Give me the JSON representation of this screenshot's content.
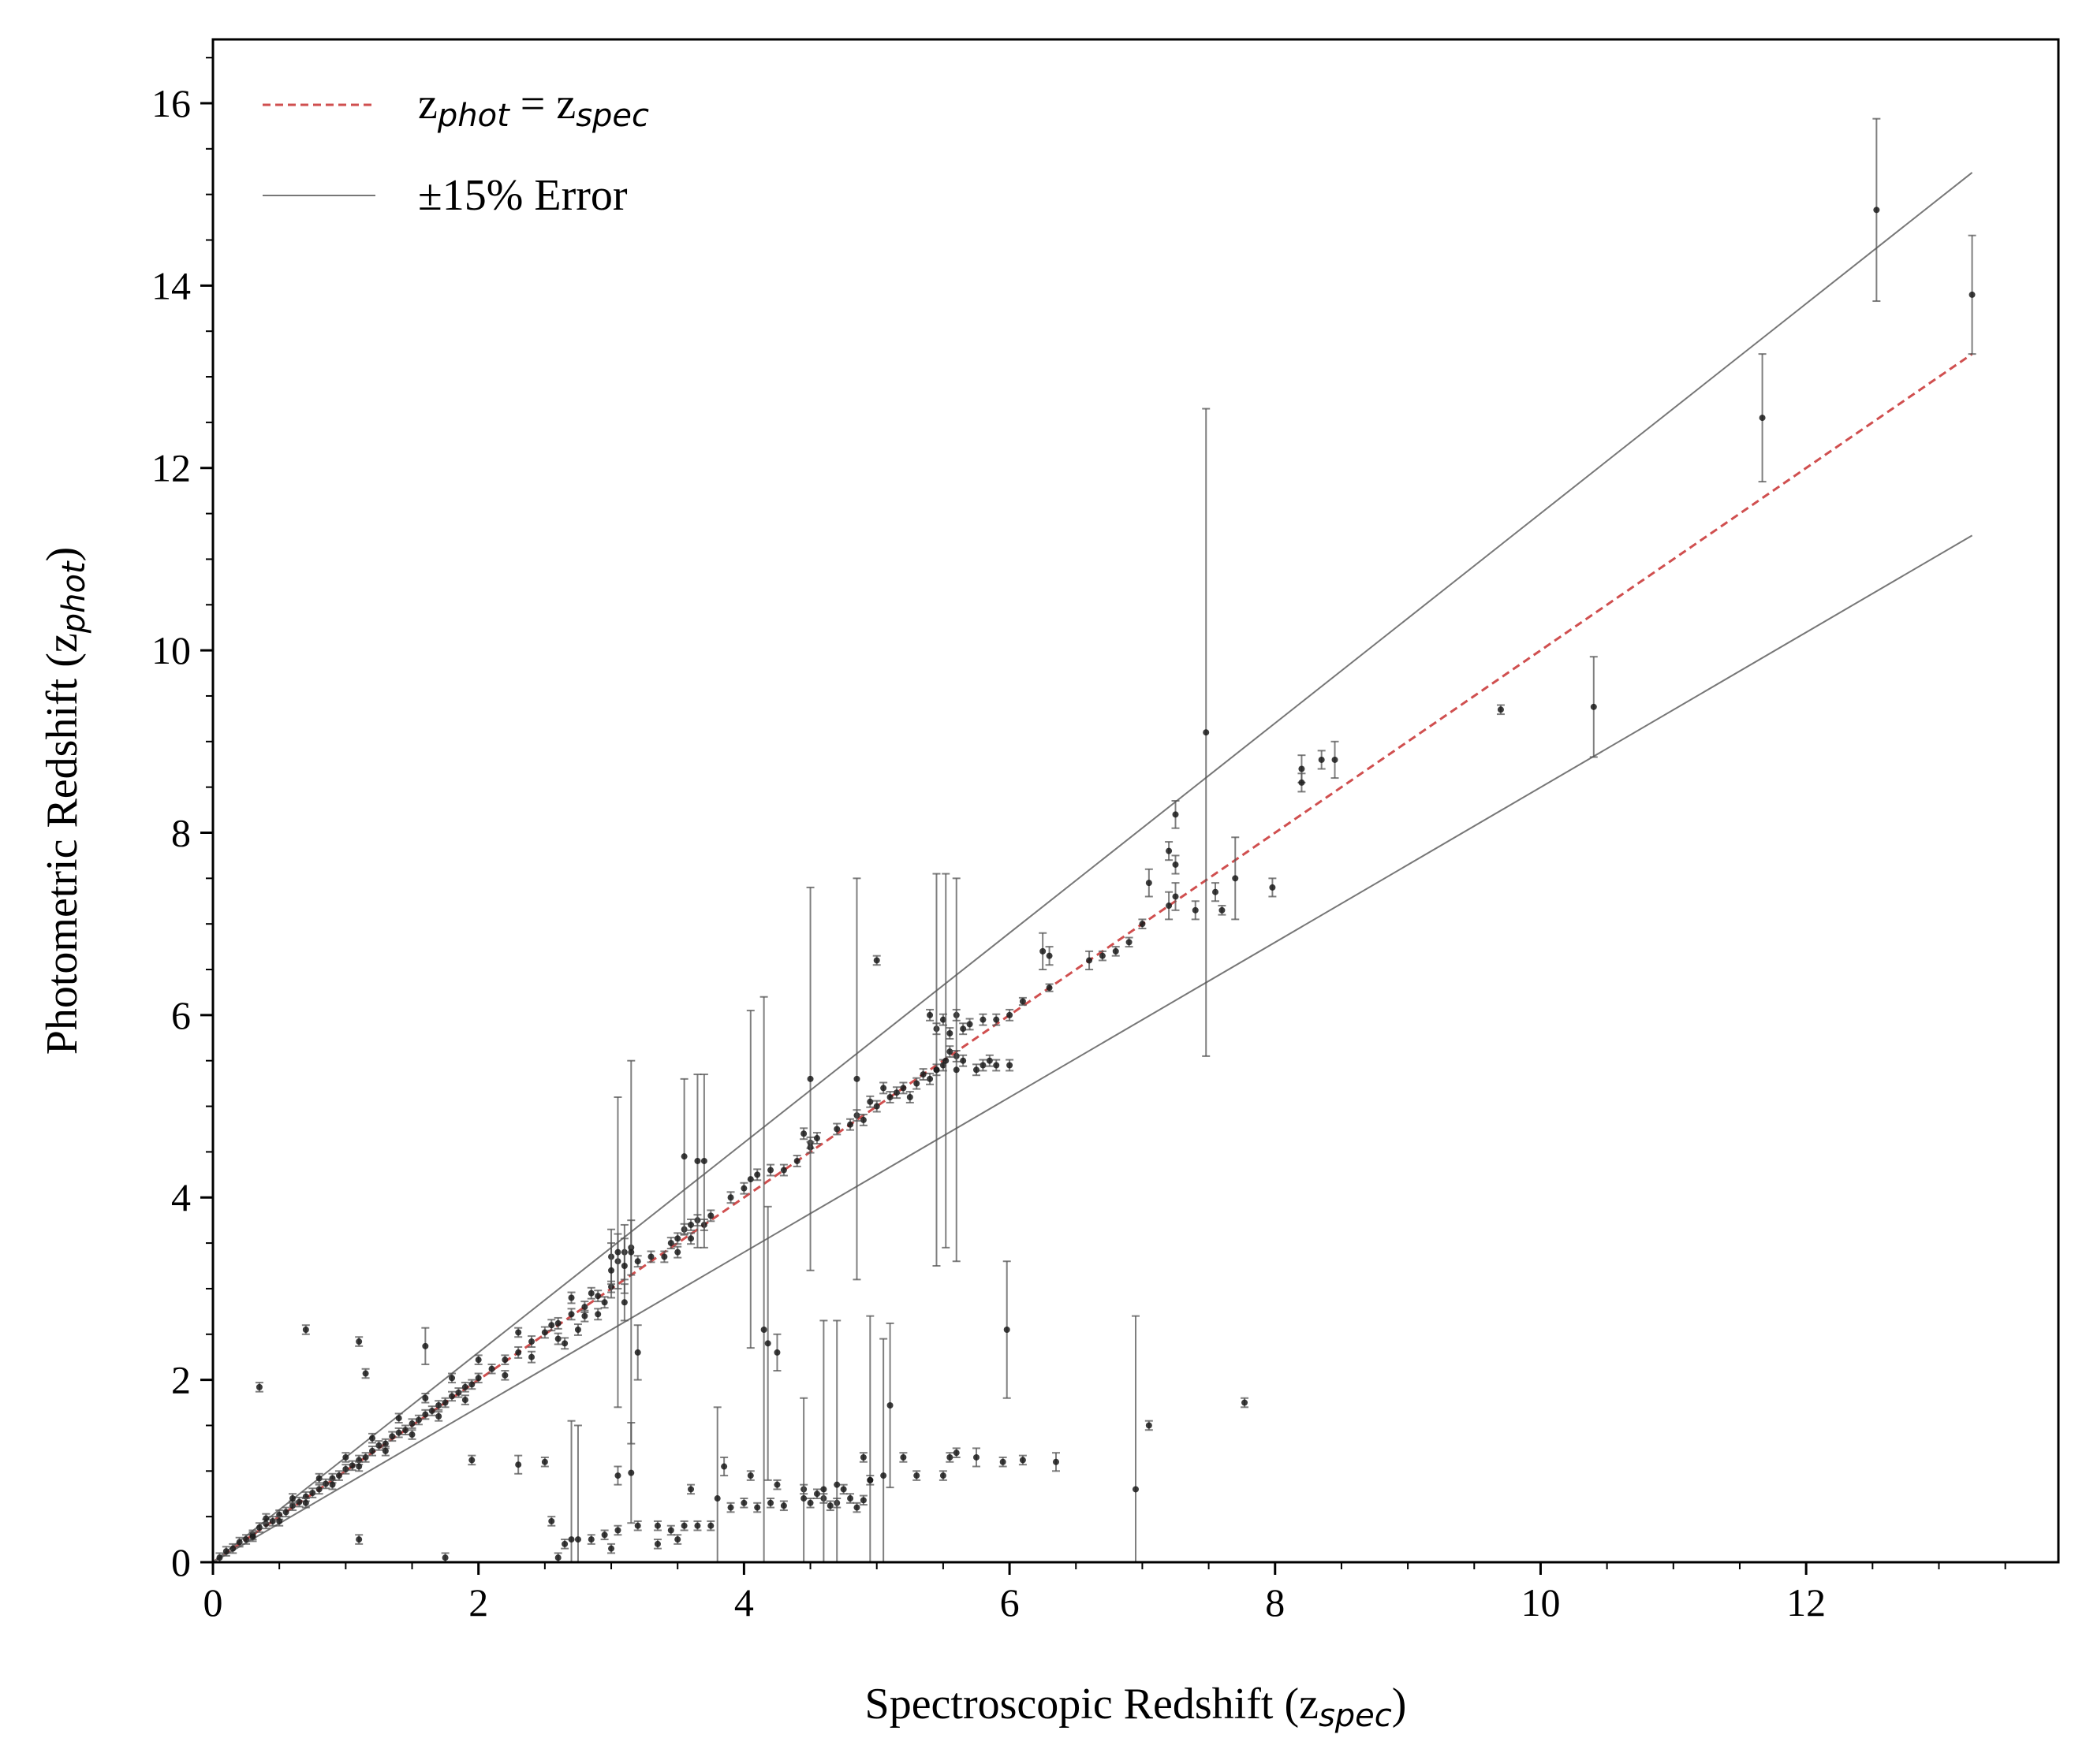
{
  "chart_data": {
    "type": "scatter",
    "xlabel": "Spectroscopic Redshift (z",
    "xlabel_sub": "spec",
    "xlabel_close": ")",
    "ylabel": "Photometric Redshift (z",
    "ylabel_sub": "phot",
    "ylabel_close": ")",
    "xlim": [
      0,
      13.9
    ],
    "ylim": [
      0,
      16.7
    ],
    "xticks": [
      0,
      2,
      4,
      6,
      8,
      10,
      12
    ],
    "yticks": [
      0,
      2,
      4,
      6,
      8,
      10,
      12,
      14,
      16
    ],
    "legend_position": "top-left",
    "legend": {
      "identity_main": "z",
      "identity_sub1": "phot",
      "identity_eq": " = z",
      "identity_sub2": "spec",
      "error_label": "±15% Error"
    },
    "colors": {
      "identity": "#d04f4f",
      "error_lines": "#777777",
      "points": "#1a1a1a",
      "errorbars": "#555555"
    },
    "lines": [
      {
        "name": "z_phot = z_spec",
        "style": "dashed",
        "x": [
          0,
          13.25
        ],
        "y": [
          0,
          13.25
        ]
      },
      {
        "name": "+15%",
        "style": "solid",
        "x": [
          0,
          13.25
        ],
        "y": [
          0,
          15.24
        ]
      },
      {
        "name": "-15%",
        "style": "solid",
        "x": [
          0,
          13.25
        ],
        "y": [
          0,
          11.26
        ]
      }
    ],
    "points": [
      [
        0.05,
        0.05,
        0.05
      ],
      [
        0.1,
        0.12,
        0.05
      ],
      [
        0.15,
        0.15,
        0.05
      ],
      [
        0.2,
        0.22,
        0.05
      ],
      [
        0.25,
        0.25,
        0.05
      ],
      [
        0.3,
        0.3,
        0.05
      ],
      [
        0.35,
        0.38,
        0.05
      ],
      [
        0.4,
        0.42,
        0.05
      ],
      [
        0.45,
        0.45,
        0.05
      ],
      [
        0.5,
        0.52,
        0.05
      ],
      [
        0.55,
        0.55,
        0.05
      ],
      [
        0.6,
        0.62,
        0.05
      ],
      [
        0.65,
        0.66,
        0.05
      ],
      [
        0.7,
        0.72,
        0.05
      ],
      [
        0.75,
        0.76,
        0.05
      ],
      [
        0.8,
        0.8,
        0.05
      ],
      [
        0.85,
        0.86,
        0.05
      ],
      [
        0.9,
        0.92,
        0.05
      ],
      [
        0.95,
        0.95,
        0.05
      ],
      [
        1.0,
        1.02,
        0.05
      ],
      [
        1.05,
        1.06,
        0.05
      ],
      [
        1.1,
        1.12,
        0.05
      ],
      [
        1.15,
        1.15,
        0.05
      ],
      [
        1.2,
        1.22,
        0.05
      ],
      [
        1.25,
        1.28,
        0.05
      ],
      [
        1.3,
        1.3,
        0.05
      ],
      [
        1.35,
        1.38,
        0.05
      ],
      [
        1.4,
        1.42,
        0.05
      ],
      [
        1.45,
        1.45,
        0.05
      ],
      [
        1.5,
        1.52,
        0.05
      ],
      [
        1.55,
        1.56,
        0.05
      ],
      [
        1.6,
        1.62,
        0.05
      ],
      [
        1.65,
        1.66,
        0.05
      ],
      [
        1.7,
        1.72,
        0.05
      ],
      [
        1.75,
        1.75,
        0.05
      ],
      [
        1.8,
        1.82,
        0.05
      ],
      [
        1.85,
        1.86,
        0.05
      ],
      [
        1.9,
        1.92,
        0.05
      ],
      [
        1.95,
        1.95,
        0.05
      ],
      [
        2.0,
        2.02,
        0.05
      ],
      [
        2.1,
        2.12,
        0.05
      ],
      [
        2.2,
        2.22,
        0.05
      ],
      [
        2.3,
        2.3,
        0.06
      ],
      [
        2.4,
        2.42,
        0.06
      ],
      [
        2.5,
        2.52,
        0.06
      ],
      [
        2.6,
        2.62,
        0.06
      ],
      [
        2.7,
        2.72,
        0.06
      ],
      [
        2.8,
        2.8,
        0.06
      ],
      [
        2.9,
        2.92,
        0.06
      ],
      [
        3.0,
        3.02,
        0.06
      ],
      [
        0.3,
        0.28,
        0.05
      ],
      [
        0.5,
        0.45,
        0.05
      ],
      [
        0.7,
        0.65,
        0.05
      ],
      [
        0.9,
        0.85,
        0.05
      ],
      [
        1.1,
        1.05,
        0.05
      ],
      [
        1.3,
        1.22,
        0.05
      ],
      [
        1.5,
        1.4,
        0.05
      ],
      [
        1.7,
        1.6,
        0.05
      ],
      [
        1.9,
        1.78,
        0.05
      ],
      [
        2.2,
        2.05,
        0.05
      ],
      [
        0.4,
        0.48,
        0.05
      ],
      [
        0.6,
        0.7,
        0.05
      ],
      [
        0.8,
        0.92,
        0.05
      ],
      [
        1.0,
        1.15,
        0.05
      ],
      [
        1.2,
        1.36,
        0.05
      ],
      [
        1.4,
        1.58,
        0.05
      ],
      [
        1.6,
        1.8,
        0.05
      ],
      [
        1.8,
        2.02,
        0.05
      ],
      [
        2.0,
        2.22,
        0.05
      ],
      [
        2.3,
        2.52,
        0.05
      ],
      [
        2.4,
        2.25,
        0.06
      ],
      [
        2.6,
        2.45,
        0.06
      ],
      [
        2.8,
        2.7,
        0.06
      ],
      [
        2.95,
        2.85,
        0.06
      ],
      [
        2.55,
        2.6,
        0.06
      ],
      [
        2.65,
        2.4,
        0.06
      ],
      [
        2.75,
        2.55,
        0.06
      ],
      [
        2.85,
        2.95,
        0.06
      ],
      [
        2.9,
        2.72,
        0.06
      ],
      [
        2.7,
        2.9,
        0.06
      ],
      [
        3.0,
        3.35,
        0.3
      ],
      [
        3.05,
        3.3,
        0.3
      ],
      [
        3.1,
        3.4,
        0.3
      ],
      [
        3.15,
        3.45,
        0.3
      ],
      [
        3.0,
        3.2,
        0.3
      ],
      [
        3.1,
        3.25,
        0.3
      ],
      [
        3.2,
        3.3,
        0.06
      ],
      [
        3.3,
        3.35,
        0.06
      ],
      [
        3.4,
        3.35,
        0.06
      ],
      [
        3.5,
        3.55,
        0.06
      ],
      [
        3.55,
        3.65,
        0.06
      ],
      [
        3.6,
        3.7,
        0.06
      ],
      [
        3.65,
        3.75,
        0.06
      ],
      [
        3.7,
        3.7,
        0.06
      ],
      [
        3.75,
        3.8,
        0.06
      ],
      [
        3.5,
        3.4,
        0.06
      ],
      [
        3.45,
        3.5,
        0.06
      ],
      [
        3.6,
        3.55,
        0.06
      ],
      [
        3.9,
        4.0,
        0.06
      ],
      [
        4.0,
        4.1,
        0.06
      ],
      [
        4.1,
        4.25,
        0.06
      ],
      [
        4.2,
        4.3,
        0.06
      ],
      [
        4.3,
        4.3,
        0.06
      ],
      [
        4.4,
        4.4,
        0.06
      ],
      [
        4.5,
        4.6,
        0.06
      ],
      [
        4.45,
        4.7,
        0.06
      ],
      [
        4.55,
        4.65,
        0.06
      ],
      [
        4.5,
        4.55,
        0.06
      ],
      [
        4.7,
        4.75,
        0.06
      ],
      [
        4.8,
        4.8,
        0.06
      ],
      [
        4.9,
        4.85,
        0.06
      ],
      [
        5.0,
        5.0,
        0.06
      ],
      [
        5.1,
        5.1,
        0.06
      ],
      [
        5.2,
        5.2,
        0.06
      ],
      [
        5.3,
        5.25,
        0.06
      ],
      [
        5.4,
        5.3,
        0.06
      ],
      [
        4.85,
        4.9,
        0.06
      ],
      [
        4.95,
        5.05,
        0.06
      ],
      [
        5.05,
        5.2,
        0.06
      ],
      [
        5.15,
        5.15,
        0.06
      ],
      [
        5.25,
        5.1,
        0.06
      ],
      [
        5.35,
        5.35,
        0.06
      ],
      [
        5.5,
        5.45,
        0.06
      ],
      [
        5.6,
        5.55,
        0.06
      ],
      [
        5.45,
        5.4,
        0.06
      ],
      [
        5.55,
        5.6,
        0.06
      ],
      [
        5.65,
        5.5,
        0.06
      ],
      [
        5.4,
        6.0,
        0.06
      ],
      [
        5.5,
        5.95,
        0.06
      ],
      [
        5.6,
        6.0,
        0.06
      ],
      [
        5.7,
        5.9,
        0.06
      ],
      [
        5.8,
        5.95,
        0.06
      ],
      [
        5.9,
        5.95,
        0.06
      ],
      [
        6.0,
        6.0,
        0.06
      ],
      [
        5.45,
        5.85,
        0.06
      ],
      [
        5.55,
        5.8,
        0.06
      ],
      [
        5.65,
        5.85,
        0.06
      ],
      [
        5.8,
        5.45,
        0.06
      ],
      [
        5.9,
        5.45,
        0.06
      ],
      [
        6.0,
        5.45,
        0.06
      ],
      [
        5.75,
        5.4,
        0.06
      ],
      [
        5.85,
        5.5,
        0.06
      ],
      [
        6.1,
        6.15,
        0.04
      ],
      [
        6.3,
        6.3,
        0.04
      ],
      [
        6.25,
        6.7,
        0.2
      ],
      [
        6.3,
        6.65,
        0.1
      ],
      [
        6.6,
        6.6,
        0.1
      ],
      [
        6.7,
        6.65,
        0.05
      ],
      [
        6.8,
        6.7,
        0.05
      ],
      [
        6.9,
        6.8,
        0.05
      ],
      [
        7.0,
        7.0,
        0.05
      ],
      [
        7.05,
        7.45,
        0.15
      ],
      [
        7.2,
        7.2,
        0.15
      ],
      [
        7.25,
        7.3,
        0.15
      ],
      [
        7.2,
        7.8,
        0.1
      ],
      [
        7.25,
        8.2,
        0.15
      ],
      [
        7.25,
        7.65,
        0.1
      ],
      [
        7.4,
        7.15,
        0.1
      ],
      [
        7.55,
        7.35,
        0.1
      ],
      [
        7.6,
        7.15,
        0.05
      ],
      [
        7.7,
        7.5,
        0.45
      ],
      [
        7.98,
        7.4,
        0.1
      ],
      [
        8.2,
        8.7,
        0.15
      ],
      [
        8.2,
        8.55,
        0.1
      ],
      [
        8.35,
        8.8,
        0.1
      ],
      [
        8.45,
        8.8,
        0.2
      ],
      [
        9.7,
        9.35,
        0.05
      ],
      [
        10.4,
        9.38,
        0.55
      ],
      [
        11.67,
        12.55,
        0.7
      ],
      [
        12.53,
        14.83,
        1.0
      ],
      [
        13.25,
        13.9,
        0.65
      ],
      [
        7.48,
        9.1,
        3.55
      ],
      [
        5.98,
        2.55,
        0.75
      ],
      [
        6.95,
        0.8,
        1.9
      ],
      [
        7.05,
        1.5,
        0.05
      ],
      [
        7.77,
        1.75,
        0.05
      ],
      [
        0.35,
        1.92,
        0.05
      ],
      [
        0.7,
        2.55,
        0.05
      ],
      [
        1.1,
        2.42,
        0.05
      ],
      [
        1.15,
        2.07,
        0.05
      ],
      [
        1.6,
        2.37,
        0.2
      ],
      [
        1.75,
        0.05,
        0.05
      ],
      [
        2.3,
        1.07,
        0.1
      ],
      [
        2.5,
        1.1,
        0.05
      ],
      [
        1.1,
        0.25,
        0.05
      ],
      [
        1.95,
        1.12,
        0.05
      ],
      [
        3.15,
        0.98,
        0.55
      ],
      [
        3.05,
        0.95,
        0.1
      ],
      [
        2.55,
        0.45,
        0.05
      ],
      [
        3.85,
        1.05,
        0.1
      ],
      [
        4.5,
        5.3,
        2.1
      ],
      [
        4.85,
        5.3,
        2.2
      ],
      [
        5.0,
        6.6,
        0.05
      ],
      [
        5.5,
        0.95,
        0.05
      ],
      [
        5.1,
        1.72,
        0.9
      ],
      [
        5.2,
        1.15,
        0.05
      ],
      [
        5.55,
        1.15,
        0.05
      ],
      [
        5.6,
        1.2,
        0.05
      ],
      [
        5.75,
        1.15,
        0.1
      ],
      [
        5.95,
        1.1,
        0.05
      ],
      [
        6.1,
        1.12,
        0.05
      ],
      [
        6.35,
        1.1,
        0.1
      ],
      [
        4.9,
        1.15,
        0.05
      ],
      [
        4.95,
        0.9,
        0.05
      ],
      [
        5.3,
        0.95,
        0.05
      ],
      [
        3.55,
        4.45,
        0.85
      ],
      [
        3.65,
        4.4,
        0.95
      ],
      [
        3.7,
        4.4,
        0.95
      ],
      [
        4.05,
        4.2,
        1.85
      ],
      [
        4.15,
        2.55,
        3.65
      ],
      [
        4.25,
        2.3,
        0.2
      ],
      [
        3.2,
        2.3,
        0.3
      ],
      [
        3.1,
        2.85,
        0.2
      ],
      [
        3.05,
        3.4,
        1.7
      ],
      [
        3.15,
        3.4,
        2.1
      ],
      [
        2.7,
        0.25,
        1.3
      ],
      [
        2.75,
        0.25,
        1.25
      ],
      [
        2.85,
        0.25,
        0.05
      ],
      [
        2.95,
        0.3,
        0.05
      ],
      [
        3.05,
        0.35,
        0.05
      ],
      [
        3.2,
        0.4,
        0.05
      ],
      [
        3.35,
        0.4,
        0.05
      ],
      [
        3.45,
        0.35,
        0.05
      ],
      [
        3.55,
        0.4,
        0.05
      ],
      [
        3.65,
        0.4,
        0.05
      ],
      [
        3.75,
        0.4,
        0.05
      ],
      [
        3.6,
        0.8,
        0.05
      ],
      [
        3.35,
        0.2,
        0.05
      ],
      [
        3.5,
        0.25,
        0.05
      ],
      [
        3.0,
        0.15,
        0.05
      ],
      [
        2.6,
        0.05,
        0.05
      ],
      [
        2.65,
        0.2,
        0.05
      ],
      [
        3.9,
        0.6,
        0.05
      ],
      [
        4.0,
        0.65,
        0.05
      ],
      [
        4.1,
        0.6,
        0.05
      ],
      [
        4.2,
        0.65,
        0.05
      ],
      [
        4.3,
        0.62,
        0.05
      ],
      [
        4.5,
        0.65,
        0.05
      ],
      [
        4.6,
        0.7,
        0.05
      ],
      [
        4.7,
        0.65,
        0.05
      ],
      [
        4.8,
        0.7,
        0.05
      ],
      [
        4.9,
        0.68,
        0.05
      ],
      [
        4.45,
        0.8,
        0.05
      ],
      [
        4.25,
        0.85,
        0.05
      ],
      [
        4.05,
        0.95,
        0.05
      ],
      [
        4.55,
        0.75,
        0.05
      ],
      [
        4.75,
        0.8,
        0.05
      ],
      [
        4.85,
        0.6,
        0.05
      ],
      [
        4.65,
        0.62,
        0.05
      ],
      [
        5.6,
        5.4,
        2.1
      ],
      [
        5.52,
        5.5,
        2.05
      ],
      [
        5.45,
        5.4,
        2.15
      ],
      [
        4.18,
        2.4,
        1.5
      ],
      [
        4.45,
        0.7,
        1.1
      ],
      [
        4.6,
        0.8,
        1.85
      ],
      [
        4.7,
        0.85,
        1.8
      ],
      [
        4.95,
        0.9,
        1.8
      ],
      [
        5.05,
        0.95,
        1.5
      ],
      [
        3.8,
        0.7,
        1.0
      ]
    ]
  }
}
